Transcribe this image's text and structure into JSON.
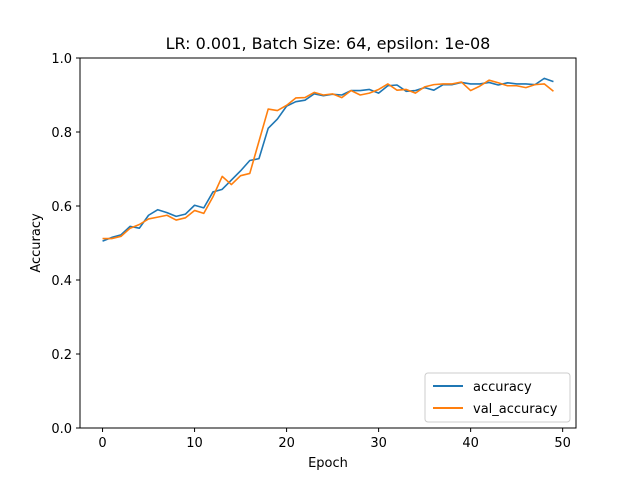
{
  "chart_data": {
    "type": "line",
    "title": "LR: 0.001, Batch Size: 64, epsilon: 1e-08",
    "xlabel": "Epoch",
    "ylabel": "Accuracy",
    "xlim": [
      -2.45,
      51.45
    ],
    "ylim": [
      0.0,
      1.0
    ],
    "xticks": [
      0,
      10,
      20,
      30,
      40,
      50
    ],
    "yticks": [
      0.0,
      0.2,
      0.4,
      0.6,
      0.8,
      1.0
    ],
    "xtick_labels": [
      "0",
      "10",
      "20",
      "30",
      "40",
      "50"
    ],
    "ytick_labels": [
      "0.0",
      "0.2",
      "0.4",
      "0.6",
      "0.8",
      "1.0"
    ],
    "grid": false,
    "legend_position": "lower-right",
    "x": [
      0,
      1,
      2,
      3,
      4,
      5,
      6,
      7,
      8,
      9,
      10,
      11,
      12,
      13,
      14,
      15,
      16,
      17,
      18,
      19,
      20,
      21,
      22,
      23,
      24,
      25,
      26,
      27,
      28,
      29,
      30,
      31,
      32,
      33,
      34,
      35,
      36,
      37,
      38,
      39,
      40,
      41,
      42,
      43,
      44,
      45,
      46,
      47,
      48,
      49
    ],
    "series": [
      {
        "name": "accuracy",
        "color": "#1f77b4",
        "values": [
          0.505,
          0.515,
          0.522,
          0.545,
          0.54,
          0.575,
          0.59,
          0.582,
          0.572,
          0.578,
          0.602,
          0.595,
          0.638,
          0.645,
          0.67,
          0.695,
          0.723,
          0.728,
          0.81,
          0.835,
          0.87,
          0.882,
          0.886,
          0.903,
          0.898,
          0.902,
          0.9,
          0.912,
          0.912,
          0.915,
          0.905,
          0.925,
          0.927,
          0.91,
          0.912,
          0.92,
          0.913,
          0.928,
          0.928,
          0.934,
          0.93,
          0.93,
          0.934,
          0.927,
          0.933,
          0.93,
          0.93,
          0.928,
          0.945,
          0.936
        ]
      },
      {
        "name": "val_accuracy",
        "color": "#ff7f0e",
        "values": [
          0.512,
          0.512,
          0.518,
          0.54,
          0.55,
          0.565,
          0.57,
          0.575,
          0.562,
          0.568,
          0.588,
          0.58,
          0.625,
          0.68,
          0.658,
          0.682,
          0.688,
          0.775,
          0.862,
          0.858,
          0.872,
          0.892,
          0.893,
          0.907,
          0.9,
          0.903,
          0.893,
          0.912,
          0.9,
          0.905,
          0.915,
          0.93,
          0.913,
          0.915,
          0.905,
          0.922,
          0.928,
          0.93,
          0.93,
          0.935,
          0.912,
          0.924,
          0.94,
          0.933,
          0.925,
          0.925,
          0.92,
          0.928,
          0.93,
          0.91
        ]
      }
    ]
  }
}
